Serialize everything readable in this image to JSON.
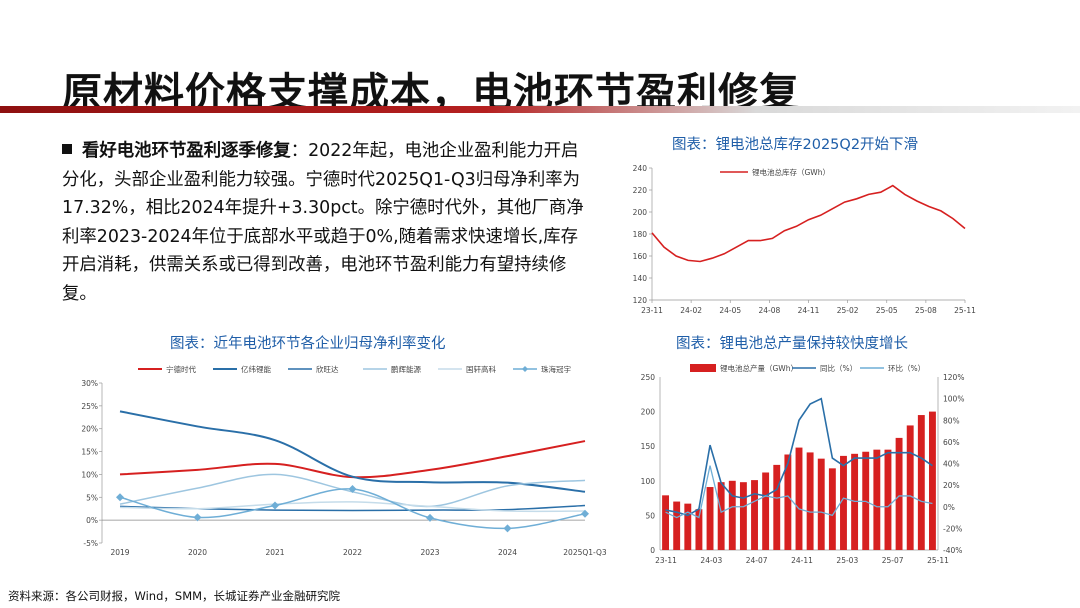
{
  "title": "原材料价格支撑成本，电池环节盈利修复",
  "bullet": {
    "heading": "看好电池环节盈利逐季修复",
    "colon": "：",
    "body": "2022年起，电池企业盈利能力开启分化，头部企业盈利能力较强。宁德时代2025Q1-Q3归母净利率为17.32%，相比2024年提升+3.30pct。除宁德时代外，其他厂商净利率2023-2024年位于底部水平或趋于0%,随着需求快速增长,库存开启消耗，供需关系或已得到改善，电池环节盈利能力有望持续修复。"
  },
  "captions": {
    "margin": "图表：近年电池环节各企业归母净利率变化",
    "inventory": "图表：锂电池总库存2025Q2开始下滑",
    "output": "图表：锂电池总产量保持较快度增长"
  },
  "source": "资料来源：各公司财报，Wind，SMM，长城证券产业金融研究院",
  "colors": {
    "red": "#d62020",
    "blue": "#2a6fa8",
    "lightblue": "#9ec6e0",
    "paleblue": "#c5dcea",
    "midblue": "#6faed6",
    "accent": "#8e1010"
  },
  "chart_data": [
    {
      "id": "margin",
      "type": "line",
      "title": "近年电池环节各企业归母净利率变化",
      "categories": [
        "2019",
        "2020",
        "2021",
        "2022",
        "2023",
        "2024",
        "2025Q1-Q3"
      ],
      "ylim": [
        -5,
        30
      ],
      "yticks": [
        -5,
        0,
        5,
        10,
        15,
        20,
        25,
        30
      ],
      "ytick_labels": [
        "-5%",
        "0%",
        "5%",
        "10%",
        "15%",
        "20%",
        "25%",
        "30%"
      ],
      "series": [
        {
          "name": "宁德时代",
          "color": "#d62020",
          "width": 2,
          "values": [
            10.0,
            11.0,
            12.3,
            9.4,
            11.0,
            14.0,
            17.3
          ]
        },
        {
          "name": "亿纬锂能",
          "color": "#2a6fa8",
          "width": 2,
          "values": [
            23.8,
            20.5,
            17.5,
            9.5,
            8.3,
            8.2,
            6.2
          ]
        },
        {
          "name": "欣旺达",
          "color": "#2a6fa8",
          "width": 1.5,
          "values": [
            3.0,
            2.5,
            2.2,
            2.1,
            2.2,
            2.3,
            3.2
          ]
        },
        {
          "name": "鹏辉能源",
          "color": "#9ec6e0",
          "width": 1.5,
          "values": [
            3.5,
            7.0,
            10.0,
            6.2,
            3.0,
            7.5,
            8.7
          ]
        },
        {
          "name": "国轩高科",
          "color": "#c5dcea",
          "width": 1.5,
          "values": [
            2.8,
            2.5,
            3.5,
            4.0,
            3.0,
            2.0,
            2.0
          ]
        },
        {
          "name": "珠海冠宇",
          "color": "#6faed6",
          "width": 1.5,
          "marker": true,
          "values": [
            5.0,
            0.6,
            3.2,
            6.8,
            0.5,
            -1.8,
            1.4
          ]
        }
      ]
    },
    {
      "id": "inventory",
      "type": "line",
      "title": "锂电池总库存2025Q2开始下滑",
      "legend": "锂电池总库存（GWh）",
      "color": "#d62020",
      "ylim": [
        120,
        240
      ],
      "yticks": [
        120,
        140,
        160,
        180,
        200,
        220,
        240
      ],
      "xtick_labels": [
        "23-11",
        "24-02",
        "24-05",
        "24-08",
        "24-11",
        "25-02",
        "25-05",
        "25-08",
        "25-11"
      ],
      "values": [
        181,
        168,
        160,
        156,
        155,
        158,
        162,
        168,
        174,
        174,
        176,
        183,
        187,
        193,
        197,
        203,
        209,
        212,
        216,
        218,
        224,
        216,
        210,
        205,
        201,
        194,
        185
      ]
    },
    {
      "id": "output",
      "type": "bar+line",
      "title": "锂电池总产量保持较快度增长",
      "legend": [
        "锂电池总产量（GWh）",
        "同比（%）",
        "环比（%）"
      ],
      "ylim_left": [
        0,
        250
      ],
      "yticks_left": [
        0,
        50,
        100,
        150,
        200,
        250
      ],
      "ylim_right": [
        -40,
        120
      ],
      "yticks_right": [
        -40,
        -20,
        0,
        20,
        40,
        60,
        80,
        100,
        120
      ],
      "ytick_labels_right": [
        "-40%",
        "-20%",
        "0%",
        "20%",
        "40%",
        "60%",
        "80%",
        "100%",
        "120%"
      ],
      "xtick_labels": [
        "23-11",
        "24-03",
        "24-07",
        "24-11",
        "25-03",
        "25-07",
        "25-11"
      ],
      "bars": [
        79,
        70,
        67,
        59,
        91,
        98,
        100,
        98,
        101,
        112,
        123,
        138,
        148,
        141,
        132,
        118,
        136,
        139,
        142,
        145,
        145,
        162,
        180,
        195,
        200
      ],
      "yoy": [
        -3,
        -5,
        -8,
        -2,
        57,
        22,
        10,
        8,
        12,
        10,
        16,
        40,
        80,
        95,
        100,
        45,
        38,
        45,
        45,
        45,
        50,
        50,
        50,
        45,
        38
      ],
      "mom": [
        -5,
        -10,
        -5,
        -10,
        38,
        -5,
        0,
        0,
        5,
        10,
        8,
        10,
        -2,
        -5,
        -5,
        -8,
        8,
        5,
        5,
        0,
        0,
        10,
        10,
        5,
        3
      ]
    }
  ]
}
